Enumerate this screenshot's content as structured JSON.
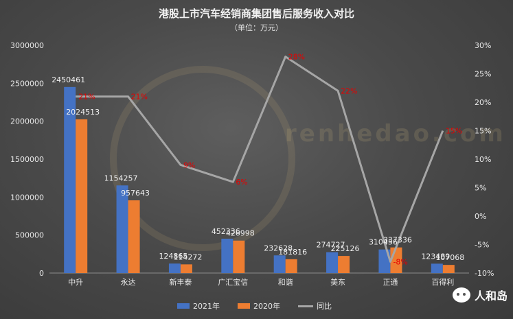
{
  "title": "港股上市汽车经销商集团售后服务收入对比",
  "subtitle": "（单位：万元）",
  "legend": {
    "s2021": "2021年",
    "s2020": "2020年",
    "yoy": "同比"
  },
  "watermark": {
    "brand": "人和岛",
    "seal": "renhedao.com"
  },
  "colors": {
    "s2021": "#4472c4",
    "s2020": "#ed7d31",
    "yoy": "#a6a6a6",
    "yoy_label": "#e60000"
  },
  "chart_data": {
    "type": "bar",
    "categories": [
      "中升",
      "永达",
      "新丰泰",
      "广汇宝信",
      "和谐",
      "美东",
      "正通",
      "百得利"
    ],
    "series": [
      {
        "name": "2021年",
        "values": [
          2450461,
          1154257,
          124865,
          452336,
          232628,
          274727,
          310456,
          123489
        ]
      },
      {
        "name": "2020年",
        "values": [
          2024513,
          957643,
          114272,
          426998,
          181816,
          225126,
          337336,
          107068
        ]
      }
    ],
    "line_series": {
      "name": "同比",
      "values": [
        21,
        21,
        9,
        6,
        28,
        22,
        -8,
        15
      ],
      "unit": "%"
    },
    "y_left": {
      "min": 0,
      "max": 3000000,
      "ticks": [
        "0",
        "500000",
        "1000000",
        "1500000",
        "2000000",
        "2500000",
        "3000000"
      ]
    },
    "y_right": {
      "min": -10,
      "max": 30,
      "ticks": [
        "-10%",
        "-5%",
        "0%",
        "5%",
        "10%",
        "15%",
        "20%",
        "25%",
        "30%"
      ]
    },
    "legend_position": "bottom"
  }
}
